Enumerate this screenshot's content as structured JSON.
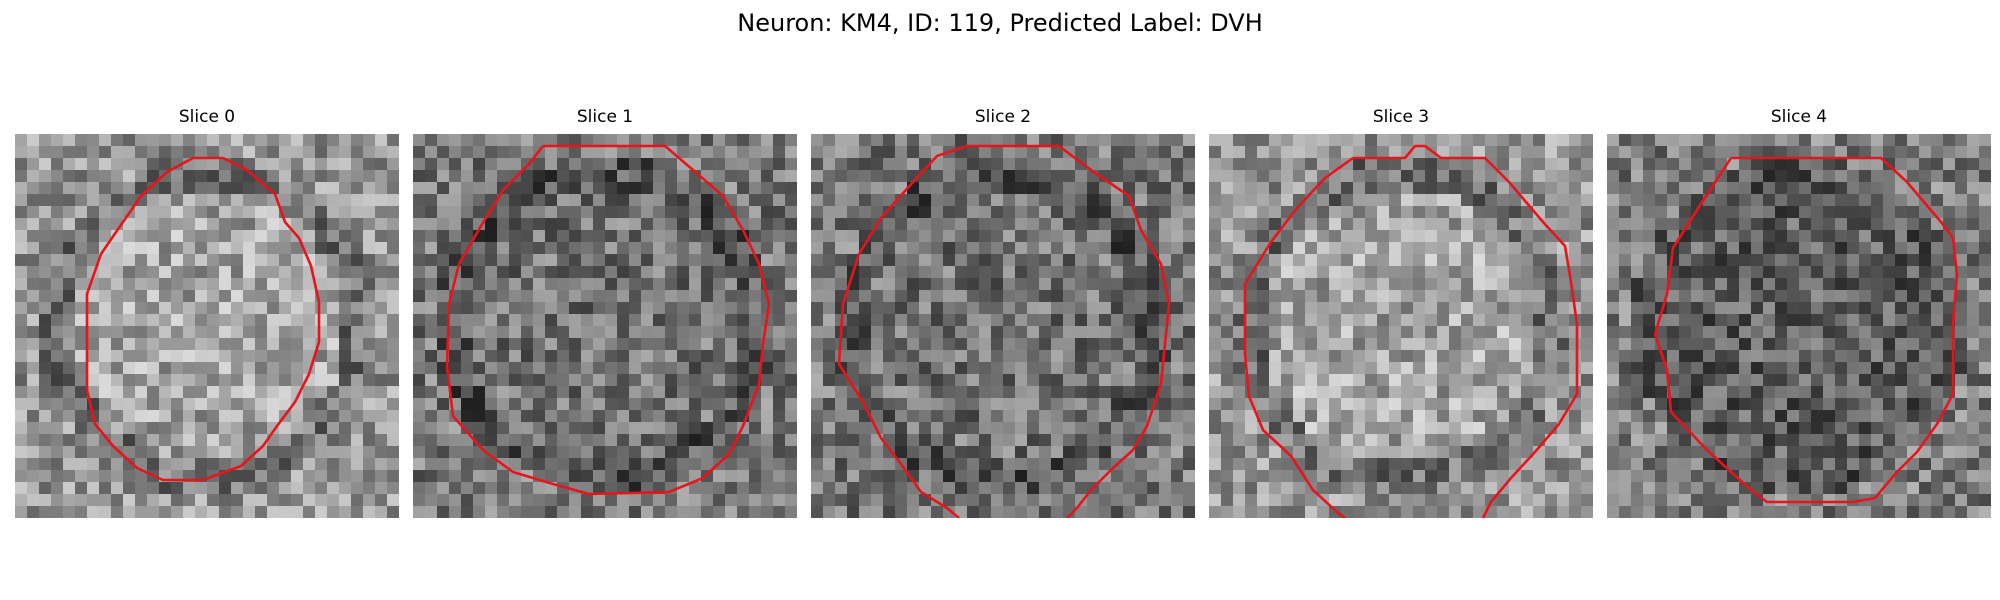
{
  "figure": {
    "title": "Neuron: KM4, ID: 119, Predicted Label: DVH"
  },
  "panels": [
    {
      "title": "Slice 0",
      "contour": "closed",
      "interior": "bright"
    },
    {
      "title": "Slice 1",
      "contour": "closed",
      "interior": "medium"
    },
    {
      "title": "Slice 2",
      "contour": "open-bottom",
      "interior": "medium"
    },
    {
      "title": "Slice 3",
      "contour": "open-bottom",
      "interior": "bright"
    },
    {
      "title": "Slice 4",
      "contour": "closed",
      "interior": "dark"
    }
  ],
  "colors": {
    "contour": "#e8141b",
    "background": "#ffffff"
  },
  "colormap": "grayscale"
}
